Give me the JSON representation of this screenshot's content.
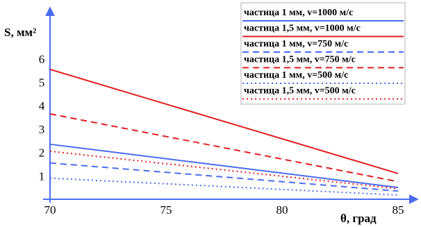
{
  "chart_data": {
    "type": "line",
    "title": "",
    "xlabel": "θ, град",
    "ylabel": "S, мм²",
    "xlim": [
      70,
      85
    ],
    "ylim": [
      0,
      6
    ],
    "xticks": [
      "70",
      "75",
      "80",
      "85"
    ],
    "yticks": [
      "1",
      "2",
      "3",
      "4",
      "5",
      "6"
    ],
    "grid": false,
    "legend_position": "top-right",
    "series": [
      {
        "name": "частица 1 мм, v=1000 м/с",
        "color": "#4a6cf0",
        "dash": "solid",
        "x": [
          70,
          85
        ],
        "y": [
          2.35,
          0.5
        ]
      },
      {
        "name": "частица 1,5 мм, v=1000 м/с",
        "color": "#e01e1e",
        "dash": "solid",
        "x": [
          70,
          85
        ],
        "y": [
          5.55,
          1.1
        ]
      },
      {
        "name": "частица 1 мм, v=750 м/с",
        "color": "#4a6cf0",
        "dash": "dashed",
        "x": [
          70,
          85
        ],
        "y": [
          1.55,
          0.35
        ]
      },
      {
        "name": "частица 1,5 мм, v=750 м/с",
        "color": "#e01e1e",
        "dash": "dashed",
        "x": [
          70,
          85
        ],
        "y": [
          3.65,
          0.75
        ]
      },
      {
        "name": "частица 1 мм, v=500 м/с",
        "color": "#4a6cf0",
        "dash": "dotted",
        "x": [
          70,
          85
        ],
        "y": [
          0.9,
          0.18
        ]
      },
      {
        "name": "частица 1,5 мм, v=500 м/с",
        "color": "#e01e1e",
        "dash": "dotted",
        "x": [
          70,
          85
        ],
        "y": [
          2.05,
          0.45
        ]
      }
    ]
  }
}
